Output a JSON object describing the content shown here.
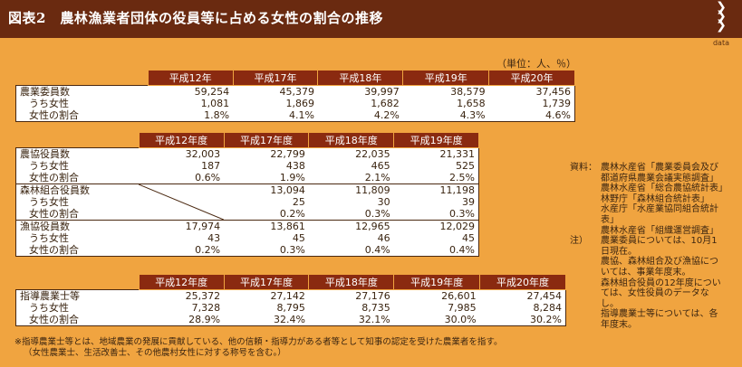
{
  "title": "図表2　農林漁業者団体の役員等に占める女性の割合の推移",
  "tag": "data",
  "unit": "（単位：人、％）",
  "table1": {
    "headers": [
      "平成12年",
      "平成17年",
      "平成18年",
      "平成19年",
      "平成20年"
    ],
    "rows": [
      {
        "label": "農業委員数",
        "values": [
          "59,254",
          "45,379",
          "39,997",
          "38,579",
          "37,456"
        ]
      },
      {
        "label": "うち女性",
        "values": [
          "1,081",
          "1,869",
          "1,682",
          "1,658",
          "1,739"
        ]
      },
      {
        "label": "女性の割合",
        "values": [
          "1.8%",
          "4.1%",
          "4.2%",
          "4.3%",
          "4.6%"
        ]
      }
    ]
  },
  "table2": {
    "headers": [
      "平成12年度",
      "平成17年度",
      "平成18年度",
      "平成19年度"
    ],
    "groups": [
      {
        "rows": [
          {
            "label": "農協役員数",
            "values": [
              "32,003",
              "22,799",
              "22,035",
              "21,331"
            ]
          },
          {
            "label": "うち女性",
            "values": [
              "187",
              "438",
              "465",
              "525"
            ]
          },
          {
            "label": "女性の割合",
            "values": [
              "0.6%",
              "1.9%",
              "2.1%",
              "2.5%"
            ]
          }
        ]
      },
      {
        "rows": [
          {
            "label": "森林組合役員数",
            "values": [
              "",
              "13,094",
              "11,809",
              "11,198"
            ]
          },
          {
            "label": "うち女性",
            "values": [
              "",
              "25",
              "30",
              "39"
            ]
          },
          {
            "label": "女性の割合",
            "values": [
              "",
              "0.2%",
              "0.3%",
              "0.3%"
            ]
          }
        ]
      },
      {
        "rows": [
          {
            "label": "漁協役員数",
            "values": [
              "17,974",
              "13,861",
              "12,965",
              "12,029"
            ]
          },
          {
            "label": "うち女性",
            "values": [
              "43",
              "45",
              "46",
              "45"
            ]
          },
          {
            "label": "女性の割合",
            "values": [
              "0.2%",
              "0.3%",
              "0.4%",
              "0.4%"
            ]
          }
        ]
      }
    ]
  },
  "table3": {
    "headers": [
      "平成12年度",
      "平成17年度",
      "平成18年度",
      "平成19年度",
      "平成20年度"
    ],
    "rows": [
      {
        "label": "指導農業士等",
        "values": [
          "25,372",
          "27,142",
          "27,176",
          "26,601",
          "27,454"
        ]
      },
      {
        "label": "うち女性",
        "values": [
          "7,328",
          "8,795",
          "8,735",
          "7,985",
          "8,284"
        ]
      },
      {
        "label": "女性の割合",
        "values": [
          "28.9%",
          "32.4%",
          "32.1%",
          "30.0%",
          "30.2%"
        ]
      }
    ]
  },
  "notes": {
    "source_label": "資料：",
    "source_lines": [
      "農林水産省「農業委員会及び都道府県農業会議実態調査」",
      "農林水産省「総合農協統計表」",
      "林野庁「森林組合統計表」",
      "水産庁「水産業協同組合統計表」",
      "農林水産省「組織運営調査」"
    ],
    "note_label": "注）",
    "note_lines": [
      "農業委員については、10月1日現在。",
      "農協、森林組合及び漁協については、事業年度末。",
      "森林組合役員の12年度については、女性役員のデータなし。",
      "指導農業士等については、各年度末。"
    ]
  },
  "footnote": [
    "※指導農業士等とは、地域農業の発展に貢献している、他の信頼・指導力がある者等として知事の認定を受けた農業者を指す。",
    "（女性農業士、生活改善士、その他農村女性に対する称号を含む。）"
  ]
}
